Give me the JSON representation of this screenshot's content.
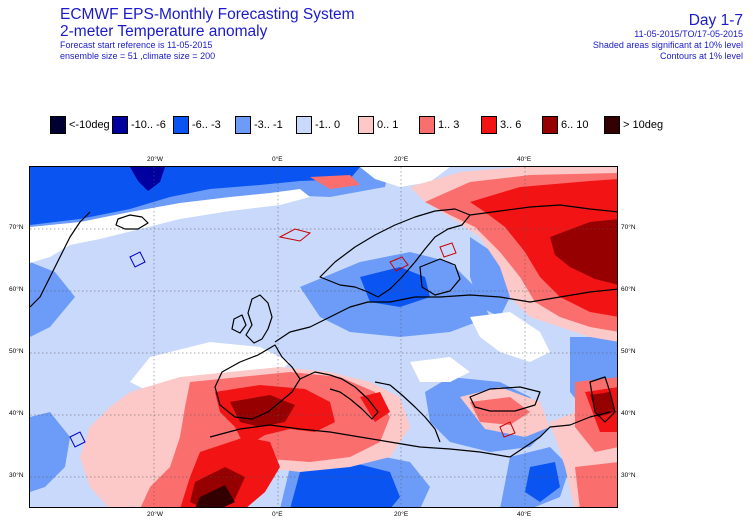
{
  "header": {
    "title": "ECMWF EPS-Monthly Forecasting System",
    "subtitle": "2-meter Temperature anomaly",
    "forecast_reference": "Forecast start reference is 11-05-2015",
    "ensemble": "ensemble size = 51  ,climate size = 200",
    "day_range": "Day 1-7",
    "period": "11-05-2015/TO/17-05-2015",
    "significance": "Shaded areas significant at 10% level",
    "contours": "Contours at 1% level"
  },
  "legend": [
    {
      "label": "<-10deg",
      "color": "#000033"
    },
    {
      "label": "-10.. -6",
      "color": "#0000a0"
    },
    {
      "label": "-6.. -3",
      "color": "#0a55f2"
    },
    {
      "label": "-3.. -1",
      "color": "#6c9cf7"
    },
    {
      "label": "-1..  0",
      "color": "#c9d9fb"
    },
    {
      "label": "0..  1",
      "color": "#fcc8c8"
    },
    {
      "label": "1..  3",
      "color": "#fa6e6e"
    },
    {
      "label": "3..  6",
      "color": "#f21414"
    },
    {
      "label": "6.. 10",
      "color": "#960000"
    },
    {
      "label": "> 10deg",
      "color": "#320000"
    }
  ],
  "map": {
    "lon_ticks": [
      "20°W",
      "0°E",
      "20°E",
      "40°E"
    ],
    "lat_ticks": [
      "70°N",
      "60°N",
      "50°N",
      "40°N",
      "30°N"
    ]
  }
}
